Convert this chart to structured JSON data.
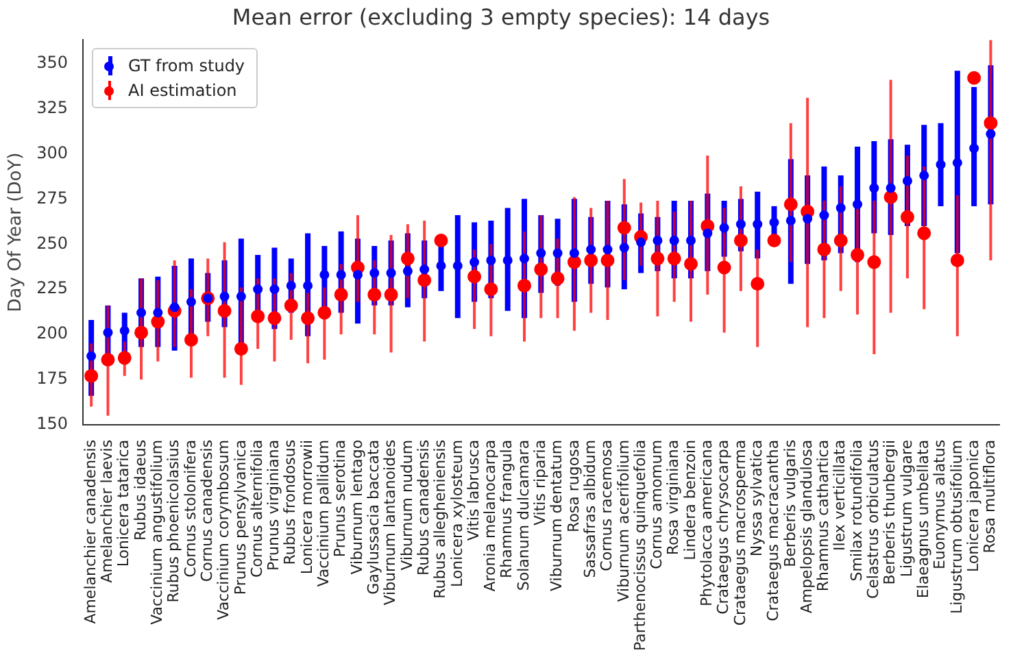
{
  "chart_data": {
    "type": "scatter",
    "title": "Mean error (excluding 3 empty species): 14 days",
    "ylabel": "Day Of Year (DoY)",
    "categories": [
      "Amelanchier canadensis",
      "Amelanchier laevis",
      "Lonicera tatarica",
      "Rubus idaeus",
      "Vaccinium angustifolium",
      "Rubus phoenicolasius",
      "Cornus stolonifera",
      "Cornus canadensis",
      "Vaccinium corymbosum",
      "Prunus pensylvanica",
      "Cornus alternifolia",
      "Prunus virginiana",
      "Rubus frondosus",
      "Lonicera morrowii",
      "Vaccinium pallidum",
      "Prunus serotina",
      "Viburnum lentago",
      "Gaylussacia baccata",
      "Viburnum lantanoides",
      "Viburnum nudum",
      "Rubus canadensis",
      "Rubus allegheniensis",
      "Lonicera xylosteum",
      "Vitis labrusca",
      "Aronia melanocarpa",
      "Rhamnus frangula",
      "Solanum dulcamara",
      "Vitis riparia",
      "Viburnum dentatum",
      "Rosa rugosa",
      "Sassafras albidum",
      "Cornus racemosa",
      "Viburnum acerifolium",
      "Parthenocissus quinquefolia",
      "Cornus amomum",
      "Rosa virginiana",
      "Lindera benzoin",
      "Phytolacca americana",
      "Crataegus chrysocarpa",
      "Crataegus macrosperma",
      "Nyssa sylvatica",
      "Crataegus macracantha",
      "Berberis vulgaris",
      "Ampelopsis glandulosa",
      "Rhamnus cathartica",
      "Ilex verticillata",
      "Smilax rotundifolia",
      "Celastrus orbiculatus",
      "Berberis thunbergii",
      "Ligustrum vulgare",
      "Elaeagnus umbellata",
      "Euonymus alatus",
      "Ligustrum obtusifolium",
      "Lonicera japonica",
      "Rosa multiflora"
    ],
    "series": [
      {
        "name": "GT from study",
        "color": "#0000ff",
        "values": [
          188,
          201,
          202,
          212,
          212,
          215,
          218,
          220,
          221,
          221,
          225,
          225,
          227,
          227,
          233,
          233,
          233,
          234,
          234,
          235,
          236,
          238,
          238,
          240,
          241,
          241,
          242,
          245,
          245,
          245,
          247,
          247,
          248,
          251,
          252,
          252,
          252,
          256,
          259,
          261,
          261,
          262,
          263,
          264,
          266,
          270,
          272,
          281,
          281,
          285,
          288,
          294,
          295,
          303,
          311
        ],
        "errors": [
          [
            166,
            208
          ],
          [
            188,
            216
          ],
          [
            188,
            212
          ],
          [
            193,
            231
          ],
          [
            193,
            232
          ],
          [
            191,
            238
          ],
          [
            199,
            242
          ],
          [
            207,
            234
          ],
          [
            204,
            241
          ],
          [
            193,
            253
          ],
          [
            212,
            244
          ],
          [
            203,
            248
          ],
          [
            212,
            242
          ],
          [
            199,
            256
          ],
          [
            215,
            249
          ],
          [
            212,
            257
          ],
          [
            206,
            253
          ],
          [
            216,
            249
          ],
          [
            216,
            252
          ],
          [
            215,
            256
          ],
          [
            220,
            252
          ],
          [
            224,
            253
          ],
          [
            209,
            266
          ],
          [
            218,
            262
          ],
          [
            220,
            263
          ],
          [
            213,
            270
          ],
          [
            209,
            275
          ],
          [
            223,
            266
          ],
          [
            227,
            264
          ],
          [
            218,
            275
          ],
          [
            228,
            265
          ],
          [
            226,
            274
          ],
          [
            225,
            272
          ],
          [
            234,
            267
          ],
          [
            235,
            265
          ],
          [
            231,
            274
          ],
          [
            231,
            274
          ],
          [
            235,
            278
          ],
          [
            243,
            274
          ],
          [
            246,
            275
          ],
          [
            242,
            279
          ],
          [
            255,
            271
          ],
          [
            228,
            297
          ],
          [
            239,
            288
          ],
          [
            241,
            293
          ],
          [
            245,
            288
          ],
          [
            240,
            304
          ],
          [
            256,
            307
          ],
          [
            255,
            308
          ],
          [
            260,
            305
          ],
          [
            260,
            316
          ],
          [
            271,
            317
          ],
          [
            245,
            346
          ],
          [
            271,
            337
          ],
          [
            272,
            349
          ]
        ]
      },
      {
        "name": "AI estimation",
        "color": "#ff0000",
        "values": [
          177,
          186,
          187,
          201,
          207,
          213,
          197,
          220,
          213,
          192,
          210,
          209,
          216,
          209,
          212,
          222,
          237,
          222,
          222,
          242,
          230,
          252,
          null,
          232,
          225,
          null,
          227,
          236,
          231,
          240,
          241,
          241,
          259,
          254,
          242,
          242,
          239,
          260,
          237,
          252,
          228,
          252,
          272,
          268,
          247,
          252,
          244,
          240,
          276,
          265,
          256,
          null,
          241,
          342,
          317
        ],
        "errors": [
          [
            160,
            195
          ],
          [
            155,
            216
          ],
          [
            177,
            196
          ],
          [
            175,
            231
          ],
          [
            185,
            230
          ],
          [
            193,
            241
          ],
          [
            176,
            225
          ],
          [
            199,
            242
          ],
          [
            176,
            251
          ],
          [
            172,
            226
          ],
          [
            192,
            231
          ],
          [
            185,
            231
          ],
          [
            197,
            234
          ],
          [
            184,
            223
          ],
          [
            186,
            226
          ],
          [
            200,
            239
          ],
          [
            218,
            266
          ],
          [
            200,
            241
          ],
          [
            190,
            255
          ],
          [
            220,
            261
          ],
          [
            196,
            263
          ],
          null,
          null,
          [
            203,
            247
          ],
          [
            199,
            250
          ],
          null,
          [
            196,
            257
          ],
          [
            209,
            266
          ],
          [
            209,
            253
          ],
          [
            202,
            276
          ],
          [
            212,
            270
          ],
          [
            208,
            274
          ],
          [
            230,
            286
          ],
          [
            238,
            273
          ],
          [
            210,
            274
          ],
          [
            218,
            268
          ],
          [
            207,
            274
          ],
          [
            222,
            299
          ],
          [
            201,
            270
          ],
          [
            224,
            282
          ],
          [
            193,
            247
          ],
          null,
          [
            240,
            317
          ],
          [
            204,
            331
          ],
          [
            209,
            274
          ],
          [
            224,
            282
          ],
          [
            211,
            274
          ],
          [
            189,
            274
          ],
          [
            212,
            341
          ],
          [
            231,
            299
          ],
          [
            214,
            293
          ],
          null,
          [
            199,
            277
          ],
          null,
          [
            241,
            363
          ]
        ]
      }
    ],
    "ylim": [
      150,
      363
    ],
    "yticks": [
      150,
      175,
      200,
      225,
      250,
      275,
      300,
      325,
      350
    ],
    "grid": false,
    "legend": "top left",
    "marker": "circle"
  }
}
